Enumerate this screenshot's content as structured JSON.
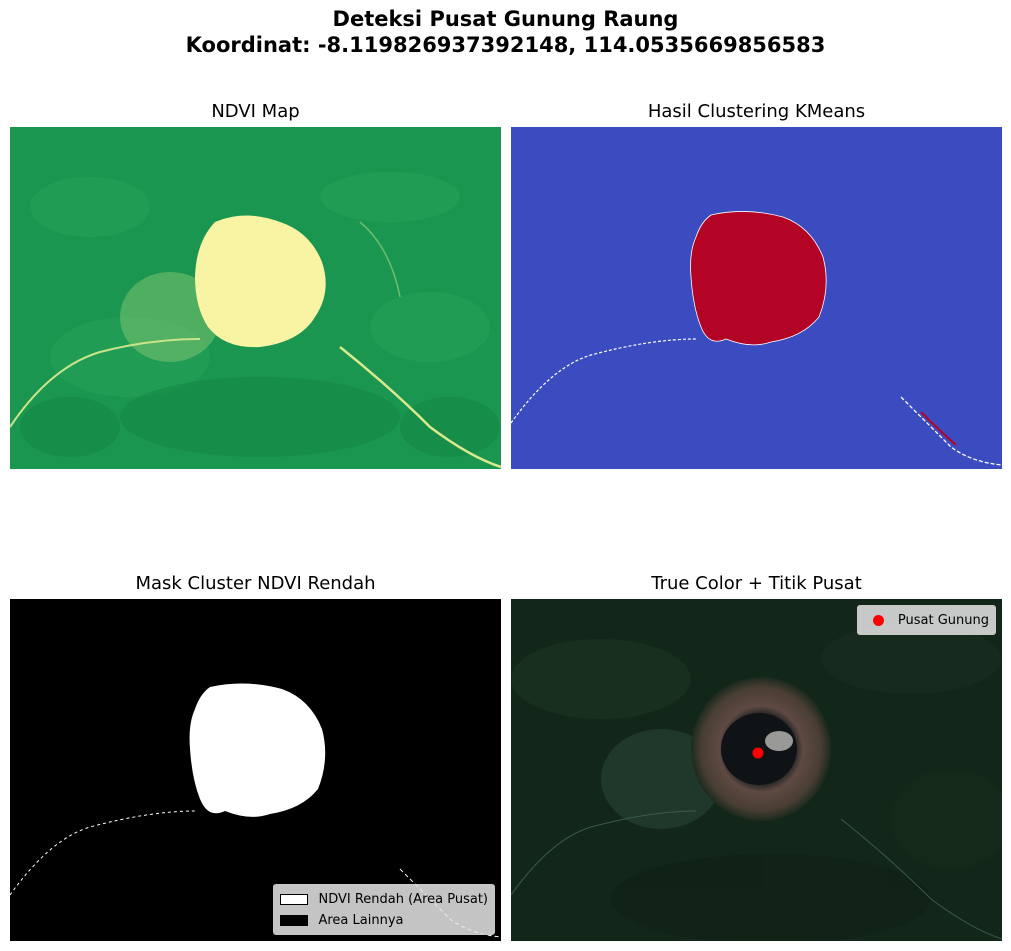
{
  "figure": {
    "title_line1": "Deteksi Pusat Gunung Raung",
    "title_line2": "Koordinat: -8.119826937392148, 114.0535669856583"
  },
  "panels": {
    "ndvi": {
      "title": "NDVI Map"
    },
    "cluster": {
      "title": "Hasil Clustering KMeans"
    },
    "mask": {
      "title": "Mask Cluster NDVI Rendah",
      "legend": [
        {
          "label": "NDVI Rendah (Area Pusat)",
          "color": "#ffffff"
        },
        {
          "label": "Area Lainnya",
          "color": "#000000"
        }
      ]
    },
    "truecolor": {
      "title": "True Color + Titik Pusat",
      "legend": [
        {
          "label": "Pusat Gunung",
          "color": "#ff0000"
        }
      ]
    }
  },
  "colors": {
    "ndvi_green": "#1a9650",
    "ndvi_dark": "#128a48",
    "ndvi_yellow": "#fbf6a2",
    "cluster_blue": "#3b4cc0",
    "cluster_red": "#b40426",
    "forest_dark": "#14281a",
    "crater_brown": "#6a544a",
    "crater_dark": "#0e1214",
    "center_marker": "#ff0000"
  }
}
